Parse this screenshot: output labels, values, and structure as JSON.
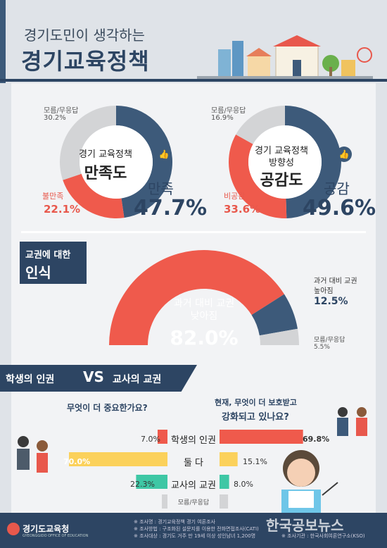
{
  "header": {
    "subtitle": "경기도민이 생각하는",
    "title": "경기교육정책"
  },
  "colors": {
    "navy": "#3d5a7a",
    "red": "#ef5a4c",
    "gray": "#d3d4d6",
    "yellow": "#fbd15b",
    "teal": "#3ec7a5"
  },
  "donut1": {
    "center_line1": "경기 교육정책",
    "center_line2": "만족도",
    "main_label": "만족",
    "main_pct": "47.7%",
    "red_label": "불만족",
    "red_pct": "22.1%",
    "gray_label": "모름/무응답",
    "gray_pct": "30.2%"
  },
  "donut2": {
    "center_line1": "경기 교육정책",
    "center_line2": "방향성",
    "center_line3": "공감도",
    "main_label": "공감",
    "main_pct": "49.6%",
    "red_label": "비공감",
    "red_pct": "33.6%",
    "gray_label": "모름/무응답",
    "gray_pct": "16.9%"
  },
  "gauge": {
    "section_line1": "교권에 대한",
    "section_line2": "인식",
    "red_label_1": "과거 대비 교권",
    "red_label_2": "낮아짐",
    "red_pct": "82.0%",
    "navy_label_1": "과거 대비 교권",
    "navy_label_2": "높아짐",
    "navy_pct": "12.5%",
    "gray_label": "모름/무응답",
    "gray_pct": "5.5%"
  },
  "compare": {
    "title_left": "학생의 인권",
    "vs": "VS",
    "title_right": "교사의 교권",
    "q_left": "무엇이 더 중요한가요?",
    "q_right_1": "현재, 무엇이 더 보호받고",
    "q_right_2": "강화되고 있나요?",
    "rows": [
      {
        "label": "학생의 인권",
        "left": "7.0%",
        "right": "69.8%"
      },
      {
        "label": "둘 다",
        "left": "70.0%",
        "right": "15.1%"
      },
      {
        "label": "교사의 교권",
        "left": "22.3%",
        "right": "8.0%"
      },
      {
        "label": "모름/무응답",
        "left": "",
        "right": ""
      }
    ]
  },
  "footer": {
    "org": "경기도교육청",
    "org_sub": "GYEONGGIDO OFFICE OF EDUCATION",
    "line1": "※ 조사명 : 경기교육정책 경기 여론조사",
    "line2": "※ 조사방법 : 구조화된 설문지를 이용한 전화면접조사(CATI)",
    "line3": "※ 조사대상 : 경기도 거주 만 19세 이상 성인남녀 1,200명",
    "line4": "※ 조사기관 : 한국사회여론연구소(KSO)",
    "watermark": "한국공보뉴스"
  },
  "chart_data": [
    {
      "type": "pie",
      "title": "경기 교육정책 만족도",
      "categories": [
        "만족",
        "불만족",
        "모름/무응답"
      ],
      "values": [
        47.7,
        22.1,
        30.2
      ]
    },
    {
      "type": "pie",
      "title": "경기 교육정책 방향성 공감도",
      "categories": [
        "공감",
        "비공감",
        "모름/무응답"
      ],
      "values": [
        49.6,
        33.6,
        16.9
      ]
    },
    {
      "type": "pie",
      "title": "교권에 대한 인식",
      "categories": [
        "과거 대비 교권 낮아짐",
        "과거 대비 교권 높아짐",
        "모름/무응답"
      ],
      "values": [
        82.0,
        12.5,
        5.5
      ]
    },
    {
      "type": "bar",
      "title": "무엇이 더 중요한가요?",
      "categories": [
        "학생의 인권",
        "둘 다",
        "교사의 교권",
        "모름/무응답"
      ],
      "values": [
        7.0,
        70.0,
        22.3,
        0.7
      ]
    },
    {
      "type": "bar",
      "title": "현재, 무엇이 더 보호받고 강화되고 있나요?",
      "categories": [
        "학생의 인권",
        "둘 다",
        "교사의 교권",
        "모름/무응답"
      ],
      "values": [
        69.8,
        15.1,
        8.0,
        7.1
      ]
    }
  ]
}
